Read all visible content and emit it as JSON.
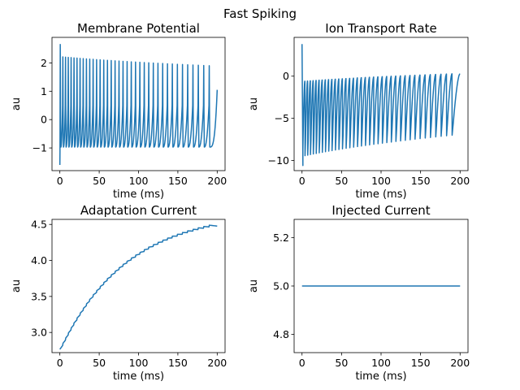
{
  "figure": {
    "suptitle": "Fast Spiking"
  },
  "chart_data": [
    {
      "type": "line",
      "title": "Membrane Potential",
      "xlabel": "time (ms)",
      "ylabel": "au",
      "xlim": [
        -10,
        210
      ],
      "ylim": [
        -1.8,
        2.9
      ],
      "xticks": [
        0,
        50,
        100,
        150,
        200
      ],
      "yticks": [
        -1,
        0,
        1,
        2
      ],
      "color": "#1f77b4",
      "series": [
        {
          "kind": "spike_train",
          "initial_value": -1.6,
          "spike_times": [
            0.5,
            3.8,
            7.2,
            10.7,
            14.3,
            18.0,
            21.8,
            25.7,
            29.7,
            33.8,
            38.0,
            42.3,
            46.7,
            51.2,
            55.8,
            60.5,
            65.3,
            70.2,
            75.2,
            80.3,
            85.5,
            90.8,
            96.2,
            101.7,
            107.3,
            113.0,
            118.8,
            124.7,
            130.7,
            136.8,
            143.0,
            149.4,
            155.9,
            162.5,
            169.2,
            176.0,
            182.9,
            189.9
          ],
          "peak_start": 2.22,
          "peak_end": 1.9,
          "first_peak": 2.65,
          "trough": -0.97,
          "end_time": 200,
          "end_value": 1.05
        }
      ]
    },
    {
      "type": "line",
      "title": "Ion Transport Rate",
      "xlabel": "time (ms)",
      "ylabel": "au",
      "xlim": [
        -10,
        210
      ],
      "ylim": [
        -11.2,
        4.6
      ],
      "xticks": [
        0,
        50,
        100,
        150,
        200
      ],
      "yticks": [
        -10,
        -5,
        0
      ],
      "color": "#1f77b4",
      "series": [
        {
          "kind": "sawtooth",
          "initial_value": 3.8,
          "first_min": -10.6,
          "min_start": -9.5,
          "min_end": -7.0,
          "reset_value": -0.5,
          "reset_start": -0.6,
          "reset_end": 0.3,
          "end_time": 200,
          "end_value": 0.3
        }
      ]
    },
    {
      "type": "line",
      "title": "Adaptation Current",
      "xlabel": "time (ms)",
      "ylabel": "au",
      "xlim": [
        -10,
        210
      ],
      "ylim": [
        2.72,
        4.57
      ],
      "xticks": [
        0,
        50,
        100,
        150,
        200
      ],
      "yticks": [
        3.0,
        3.5,
        4.0,
        4.5
      ],
      "ytick_labels": [
        "3.0",
        "3.5",
        "4.0",
        "4.5"
      ],
      "color": "#1f77b4",
      "series": [
        {
          "kind": "saturating_rise",
          "start_value": 2.75,
          "final_value": 4.5,
          "plateau": 4.8,
          "tau_ms": 85,
          "ripple": 0.025
        }
      ]
    },
    {
      "type": "line",
      "title": "Injected Current",
      "xlabel": "time (ms)",
      "ylabel": "au",
      "xlim": [
        -10,
        210
      ],
      "ylim": [
        4.725,
        5.275
      ],
      "xticks": [
        0,
        50,
        100,
        150,
        200
      ],
      "yticks": [
        4.8,
        5.0,
        5.2
      ],
      "ytick_labels": [
        "4.8",
        "5.0",
        "5.2"
      ],
      "color": "#1f77b4",
      "series": [
        {
          "kind": "constant",
          "x": [
            0,
            200
          ],
          "y": [
            5.0,
            5.0
          ]
        }
      ]
    }
  ]
}
